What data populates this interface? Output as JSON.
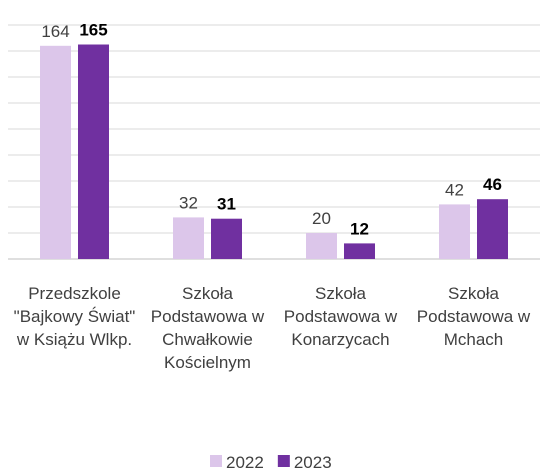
{
  "chart_data": {
    "type": "bar",
    "categories": [
      "Przedszkole \"Bajkowy Świat\" w Książu Wlkp.",
      "Szkoła Podstawowa w Chwałkowie Kościelnym",
      "Szkoła Podstawowa w Konarzycach",
      "Szkoła Podstawowa w Mchach"
    ],
    "series": [
      {
        "name": "2022",
        "color": "#dcc6ea",
        "values": [
          164,
          32,
          20,
          42
        ]
      },
      {
        "name": "2023",
        "color": "#7030a0",
        "values": [
          165,
          31,
          12,
          46
        ]
      }
    ],
    "ylim": [
      0,
      180
    ],
    "yticks": [
      0,
      20,
      40,
      60,
      80,
      100,
      120,
      140,
      160,
      180
    ],
    "grid": true,
    "legend": "bottom"
  }
}
